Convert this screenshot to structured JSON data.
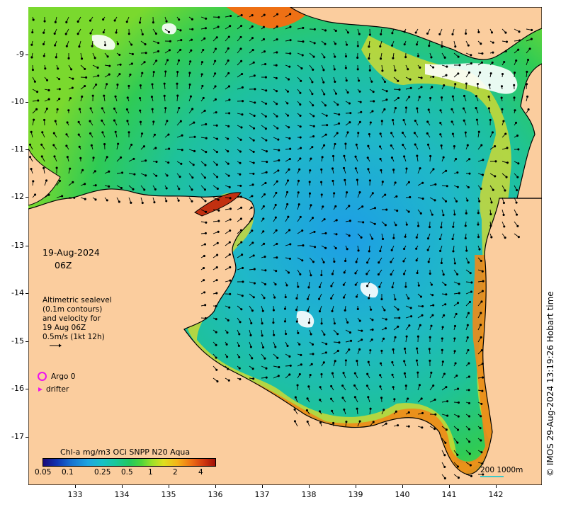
{
  "map": {
    "lat_axis_ticks": [
      "-9",
      "-10",
      "-11",
      "-12",
      "-13",
      "-14",
      "-15",
      "-16",
      "-17"
    ],
    "lon_axis_ticks": [
      "133",
      "134",
      "135",
      "136",
      "137",
      "138",
      "139",
      "140",
      "141",
      "142"
    ],
    "region": "Gulf of Carpentaria",
    "colors": {
      "land": "#fbcd9e",
      "ocean_low": "#1fa5e0",
      "ocean_mid": "#22c860",
      "coastal_high": "#d23a10"
    }
  },
  "annotation": {
    "date": "19-Aug-2024",
    "hour": "06Z",
    "altimetry_lines": [
      "Altimetric sealevel",
      "(0.1m contours)",
      "and velocity for",
      "19 Aug 06Z",
      "0.5m/s (1kt 12h)"
    ]
  },
  "legend": {
    "argo_label": "Argo 0",
    "drifter_label": "drifter",
    "marker_color": "#ee11ee"
  },
  "colorbar": {
    "title": "Chl-a mg/m3 OCi SNPP N20 Aqua",
    "tick_labels": [
      "0.05",
      "0.1",
      "0.25",
      "0.5",
      "1",
      "2",
      "4"
    ]
  },
  "scalebar": {
    "label": "200  1000m"
  },
  "credit": "© IMOS 29-Aug-2024 13:19:26 Hobart time"
}
